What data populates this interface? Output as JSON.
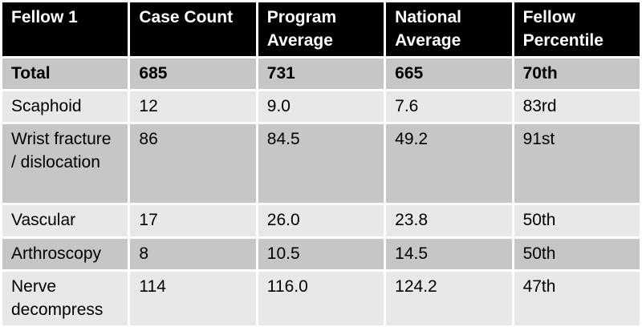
{
  "colors": {
    "header_bg": "#000000",
    "header_text": "#ffffff",
    "band_dark": "#c6c6c6",
    "band_light": "#e8e8e8",
    "grid_gap": "#ffffff",
    "body_text": "#000000"
  },
  "chart_data": {
    "type": "table",
    "columns": [
      "Fellow 1",
      "Case Count",
      "Program Average",
      "National Average",
      "Fellow Percentile"
    ],
    "rows": [
      {
        "category": "Total",
        "case_count": "685",
        "program_average": "731",
        "national_average": "665",
        "fellow_percentile": "70th"
      },
      {
        "category": "Scaphoid",
        "case_count": "12",
        "program_average": "9.0",
        "national_average": "7.6",
        "fellow_percentile": "83rd"
      },
      {
        "category": "Wrist fracture / dislocation",
        "case_count": "86",
        "program_average": "84.5",
        "national_average": "49.2",
        "fellow_percentile": "91st"
      },
      {
        "category": "Vascular",
        "case_count": "17",
        "program_average": "26.0",
        "national_average": "23.8",
        "fellow_percentile": "50th"
      },
      {
        "category": "Arthroscopy",
        "case_count": "8",
        "program_average": "10.5",
        "national_average": "14.5",
        "fellow_percentile": "50th"
      },
      {
        "category": "Nerve decompress",
        "case_count": "114",
        "program_average": "116.0",
        "national_average": "124.2",
        "fellow_percentile": "47th"
      }
    ]
  }
}
